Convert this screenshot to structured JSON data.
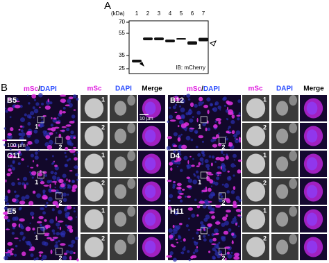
{
  "panel_a": {
    "label": "A",
    "unit": "(kDa)",
    "markers": [
      "70",
      "55",
      "35",
      "25"
    ],
    "lanes": [
      "1",
      "2",
      "3",
      "4",
      "5",
      "6",
      "7"
    ],
    "antibody": "IB: mCherry"
  },
  "panel_b": {
    "label": "B",
    "headers": {
      "overview_left": "mSc",
      "overview_sep": "/",
      "overview_right": "DAPI",
      "channel_1": "mSc",
      "channel_2": "DAPI",
      "channel_3": "Merge"
    },
    "rows": [
      "B5",
      "C11",
      "E5",
      "B12",
      "D4",
      "H11"
    ],
    "cell_labels": [
      "1",
      "2"
    ],
    "scale_bars": [
      "100 µm",
      "10 µm"
    ]
  }
}
